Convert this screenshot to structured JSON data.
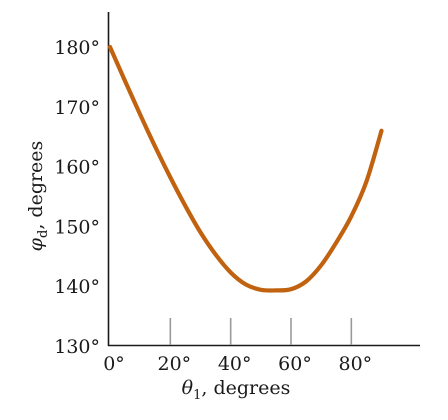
{
  "chart_data": {
    "type": "line",
    "xlabel": "θ",
    "xlabel_sub": "1",
    "xlabel_rest": ", degrees",
    "ylabel": "φ",
    "ylabel_sub": "d",
    "ylabel_rest": ", degrees",
    "xlim": [
      0,
      90
    ],
    "ylim": [
      130,
      185
    ],
    "x_ticks": [
      0,
      20,
      40,
      60,
      80
    ],
    "x_tick_labels": [
      "0°",
      "20°",
      "40°",
      "60°",
      "80°"
    ],
    "y_ticks": [
      130,
      140,
      150,
      160,
      170,
      180
    ],
    "y_tick_labels": [
      "130°",
      "140°",
      "150°",
      "160°",
      "170°",
      "180°"
    ],
    "grid": false,
    "series": [
      {
        "color": "#c0620f",
        "x": [
          0,
          5,
          10,
          15,
          20,
          25,
          30,
          35,
          40,
          45,
          50,
          55,
          60,
          65,
          70,
          75,
          80,
          85,
          90
        ],
        "y": [
          180,
          174.3,
          168.7,
          163.3,
          158.2,
          153.4,
          149.0,
          145.3,
          142.3,
          140.3,
          139.4,
          139.3,
          139.5,
          140.8,
          143.5,
          147.3,
          151.7,
          157.5,
          166.0
        ]
      }
    ]
  }
}
